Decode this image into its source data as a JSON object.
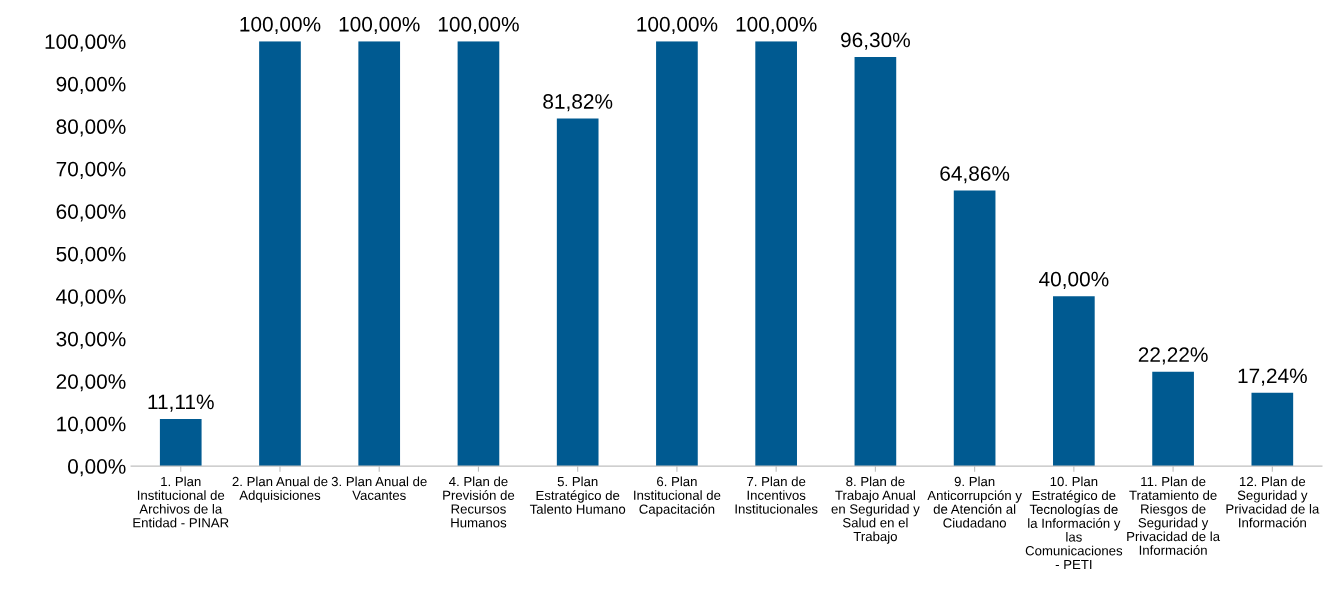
{
  "chart_data": {
    "type": "bar",
    "categories": [
      "1. Plan\nInstitucional de\nArchivos de la\nEntidad - PINAR",
      "2. Plan Anual de\nAdquisiciones",
      "3. Plan Anual de\nVacantes",
      "4. Plan de\nPrevisión de\nRecursos\nHumanos",
      "5. Plan\nEstratégico de\nTalento Humano",
      "6. Plan\nInstitucional de\nCapacitación",
      "7. Plan de\nIncentivos\nInstitucionales",
      "8. Plan de\nTrabajo Anual\nen Seguridad y\nSalud en el\nTrabajo",
      "9. Plan\nAnticorrupción y\nde Atención al\nCiudadano",
      "10. Plan\nEstratégico de\nTecnologías de\nla Información y\nlas\nComunicaciones\n- PETI",
      "11. Plan de\nTratamiento de\nRiesgos de\nSeguridad y\nPrivacidad de la\nInformación",
      "12. Plan de\nSeguridad y\nPrivacidad de la\nInformación"
    ],
    "values": [
      11.11,
      100,
      100,
      100,
      81.82,
      100,
      100,
      96.3,
      64.86,
      40,
      22.22,
      17.24
    ],
    "value_labels": [
      "11,11%",
      "100,00%",
      "100,00%",
      "100,00%",
      "81,82%",
      "100,00%",
      "100,00%",
      "96,30%",
      "64,86%",
      "40,00%",
      "22,22%",
      "17,24%"
    ],
    "color": "#005a91",
    "ylim": [
      0,
      100
    ],
    "yticks": [
      {
        "value": 0,
        "label": "0,00%"
      },
      {
        "value": 10,
        "label": "10,00%"
      },
      {
        "value": 20,
        "label": "20,00%"
      },
      {
        "value": 30,
        "label": "30,00%"
      },
      {
        "value": 40,
        "label": "40,00%"
      },
      {
        "value": 50,
        "label": "50,00%"
      },
      {
        "value": 60,
        "label": "60,00%"
      },
      {
        "value": 70,
        "label": "70,00%"
      },
      {
        "value": 80,
        "label": "80,00%"
      },
      {
        "value": 90,
        "label": "90,00%"
      },
      {
        "value": 100,
        "label": "100,00%"
      }
    ],
    "grid": false
  }
}
